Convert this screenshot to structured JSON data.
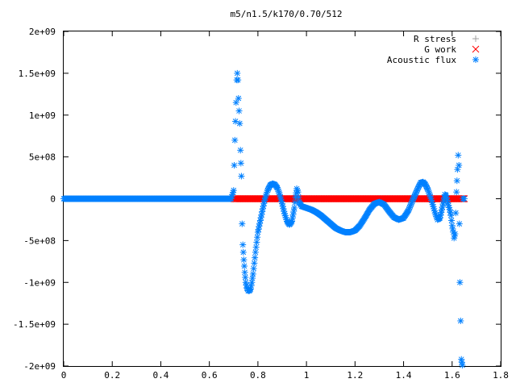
{
  "chart_data": {
    "type": "scatter",
    "title": "m5/n1.5/k170/0.70/512",
    "xlabel": "",
    "ylabel": "",
    "xlim": [
      0,
      1.8
    ],
    "ylim": [
      -2000000000,
      2000000000
    ],
    "x_ticks": [
      {
        "value": 0,
        "label": "0"
      },
      {
        "value": 0.2,
        "label": "0.2"
      },
      {
        "value": 0.4,
        "label": "0.4"
      },
      {
        "value": 0.6,
        "label": "0.6"
      },
      {
        "value": 0.8,
        "label": "0.8"
      },
      {
        "value": 1.0,
        "label": "1"
      },
      {
        "value": 1.2,
        "label": "1.2"
      },
      {
        "value": 1.4,
        "label": "1.4"
      },
      {
        "value": 1.6,
        "label": "1.6"
      },
      {
        "value": 1.8,
        "label": "1.8"
      }
    ],
    "y_ticks": [
      {
        "value": 2000000000,
        "label": "2e+09"
      },
      {
        "value": 1500000000,
        "label": "1.5e+09"
      },
      {
        "value": 1000000000,
        "label": "1e+09"
      },
      {
        "value": 500000000,
        "label": "5e+08"
      },
      {
        "value": 0,
        "label": "0"
      },
      {
        "value": -500000000,
        "label": "-5e+08"
      },
      {
        "value": -1000000000,
        "label": "-1e+09"
      },
      {
        "value": -1500000000,
        "label": "-1.5e+09"
      },
      {
        "value": -2000000000,
        "label": "-2e+09"
      }
    ],
    "grid": false,
    "legend_position": "top-right",
    "series": [
      {
        "name": "R stress",
        "marker": "plus",
        "color": "#a0a0a0",
        "points": [
          [
            0.7,
            0
          ],
          [
            1.65,
            0
          ]
        ]
      },
      {
        "name": "G work",
        "marker": "cross",
        "color": "#ff0000",
        "points": [
          [
            0.7,
            0
          ],
          [
            1.65,
            0
          ]
        ]
      },
      {
        "name": "Acoustic flux",
        "marker": "star",
        "color": "#0080ff",
        "points": [
          [
            0.0,
            0
          ],
          [
            0.05,
            0
          ],
          [
            0.1,
            0
          ],
          [
            0.15,
            0
          ],
          [
            0.2,
            0
          ],
          [
            0.25,
            0
          ],
          [
            0.3,
            0
          ],
          [
            0.35,
            0
          ],
          [
            0.4,
            0
          ],
          [
            0.45,
            0
          ],
          [
            0.5,
            0
          ],
          [
            0.55,
            0
          ],
          [
            0.6,
            0
          ],
          [
            0.65,
            0
          ],
          [
            0.69,
            0
          ],
          [
            0.7,
            100000000
          ],
          [
            0.705,
            700000000
          ],
          [
            0.71,
            1150000000
          ],
          [
            0.713,
            1420000000
          ],
          [
            0.715,
            1500000000
          ],
          [
            0.718,
            1420000000
          ],
          [
            0.72,
            1200000000
          ],
          [
            0.725,
            900000000
          ],
          [
            0.728,
            580000000
          ],
          [
            0.732,
            270000000
          ],
          [
            0.735,
            -300000000
          ],
          [
            0.738,
            -550000000
          ],
          [
            0.742,
            -730000000
          ],
          [
            0.746,
            -880000000
          ],
          [
            0.75,
            -1000000000
          ],
          [
            0.755,
            -1070000000
          ],
          [
            0.76,
            -1100000000
          ],
          [
            0.765,
            -1100000000
          ],
          [
            0.77,
            -1080000000
          ],
          [
            0.775,
            -1000000000
          ],
          [
            0.78,
            -900000000
          ],
          [
            0.785,
            -770000000
          ],
          [
            0.79,
            -640000000
          ],
          [
            0.795,
            -520000000
          ],
          [
            0.8,
            -400000000
          ],
          [
            0.81,
            -260000000
          ],
          [
            0.82,
            -120000000
          ],
          [
            0.83,
            10000000
          ],
          [
            0.84,
            100000000
          ],
          [
            0.85,
            160000000
          ],
          [
            0.86,
            180000000
          ],
          [
            0.87,
            170000000
          ],
          [
            0.88,
            130000000
          ],
          [
            0.89,
            50000000
          ],
          [
            0.9,
            -60000000
          ],
          [
            0.91,
            -180000000
          ],
          [
            0.92,
            -270000000
          ],
          [
            0.93,
            -310000000
          ],
          [
            0.94,
            -270000000
          ],
          [
            0.95,
            -110000000
          ],
          [
            0.955,
            20000000
          ],
          [
            0.96,
            120000000
          ],
          [
            0.965,
            80000000
          ],
          [
            0.97,
            -40000000
          ],
          [
            0.98,
            -90000000
          ],
          [
            0.99,
            -100000000
          ],
          [
            1.0,
            -110000000
          ],
          [
            1.02,
            -130000000
          ],
          [
            1.04,
            -160000000
          ],
          [
            1.06,
            -200000000
          ],
          [
            1.08,
            -250000000
          ],
          [
            1.1,
            -300000000
          ],
          [
            1.12,
            -350000000
          ],
          [
            1.14,
            -380000000
          ],
          [
            1.16,
            -400000000
          ],
          [
            1.18,
            -400000000
          ],
          [
            1.2,
            -380000000
          ],
          [
            1.22,
            -320000000
          ],
          [
            1.24,
            -230000000
          ],
          [
            1.26,
            -130000000
          ],
          [
            1.28,
            -60000000
          ],
          [
            1.3,
            -40000000
          ],
          [
            1.32,
            -70000000
          ],
          [
            1.34,
            -150000000
          ],
          [
            1.36,
            -220000000
          ],
          [
            1.38,
            -250000000
          ],
          [
            1.4,
            -230000000
          ],
          [
            1.42,
            -140000000
          ],
          [
            1.44,
            0
          ],
          [
            1.46,
            130000000
          ],
          [
            1.47,
            190000000
          ],
          [
            1.48,
            200000000
          ],
          [
            1.49,
            170000000
          ],
          [
            1.5,
            110000000
          ],
          [
            1.51,
            30000000
          ],
          [
            1.52,
            -70000000
          ],
          [
            1.53,
            -170000000
          ],
          [
            1.54,
            -250000000
          ],
          [
            1.55,
            -230000000
          ],
          [
            1.56,
            -100000000
          ],
          [
            1.57,
            50000000
          ],
          [
            1.575,
            40000000
          ],
          [
            1.585,
            -80000000
          ],
          [
            1.59,
            -130000000
          ],
          [
            1.595,
            -200000000
          ],
          [
            1.6,
            -320000000
          ],
          [
            1.605,
            -400000000
          ],
          [
            1.608,
            -470000000
          ],
          [
            1.612,
            -420000000
          ],
          [
            1.618,
            80000000
          ],
          [
            1.622,
            350000000
          ],
          [
            1.625,
            520000000
          ],
          [
            1.628,
            400000000
          ],
          [
            1.632,
            -1000000000
          ],
          [
            1.638,
            -1920000000
          ],
          [
            1.642,
            -1990000000
          ],
          [
            1.645,
            0
          ],
          [
            1.65,
            0
          ]
        ]
      }
    ]
  }
}
